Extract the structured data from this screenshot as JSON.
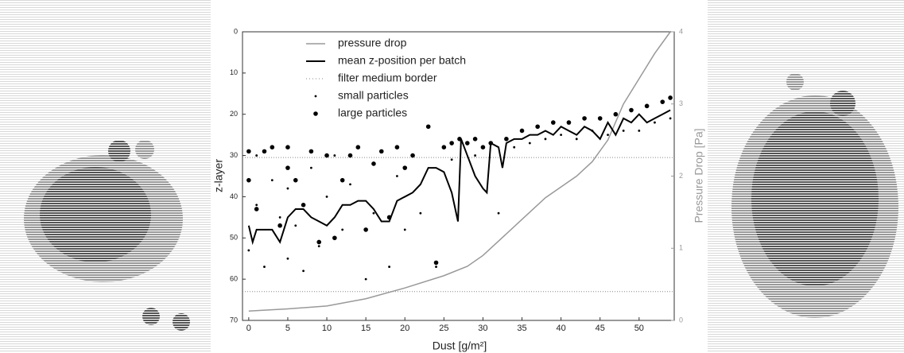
{
  "chart_data": {
    "type": "line",
    "x_label": "Dust [g/m²]",
    "y_label": "z-layer",
    "y2_label": "Pressure Drop [Pa]",
    "xlim": [
      -0.8,
      54.5
    ],
    "xticks": [
      0,
      5,
      10,
      15,
      20,
      25,
      30,
      35,
      40,
      45,
      50
    ],
    "ylim": [
      0,
      70
    ],
    "y_inverted": true,
    "yticks": [
      0,
      10,
      20,
      30,
      40,
      50,
      60,
      70
    ],
    "y2lim": [
      0,
      4
    ],
    "y2ticks": [
      0,
      1,
      2,
      3,
      4
    ],
    "y2_color": "#999999",
    "legend": "upper left",
    "series": [
      {
        "name": "pressure drop",
        "type": "line",
        "axis": "y2",
        "color": "#999999",
        "x": [
          0,
          5,
          10,
          15,
          20,
          25,
          28,
          30,
          32,
          35,
          38,
          40,
          42,
          44,
          46,
          48,
          50,
          52,
          54
        ],
        "values": [
          0.13,
          0.16,
          0.2,
          0.3,
          0.45,
          0.62,
          0.75,
          0.9,
          1.1,
          1.4,
          1.7,
          1.85,
          2.0,
          2.2,
          2.5,
          3.0,
          3.35,
          3.7,
          4.0
        ]
      },
      {
        "name": "mean z-position per batch",
        "type": "line",
        "color": "#000000",
        "x": [
          0,
          0.5,
          1,
          2,
          3,
          4,
          5,
          6,
          7,
          8,
          9,
          10,
          11,
          12,
          13,
          14,
          15,
          16,
          17,
          18,
          19,
          20,
          21,
          22,
          23,
          24,
          25,
          26,
          26.8,
          27.2,
          28,
          29,
          30,
          30.5,
          31,
          32,
          32.5,
          33,
          34,
          35,
          36,
          37,
          38,
          39,
          40,
          41,
          42,
          43,
          44,
          45,
          46,
          47,
          48,
          49,
          50,
          51,
          52,
          53,
          54
        ],
        "values": [
          47,
          51,
          48,
          48,
          48,
          51,
          45,
          43,
          43,
          45,
          46,
          47,
          45,
          42,
          42,
          41,
          41,
          43,
          46,
          46,
          41,
          40,
          39,
          37,
          33,
          33,
          34,
          39,
          46,
          26,
          30,
          35,
          38,
          39,
          27,
          28,
          33,
          27,
          26,
          26,
          25,
          25,
          24,
          25,
          23,
          24,
          25,
          23,
          24,
          26,
          22,
          25,
          21,
          22,
          20,
          22,
          21,
          20,
          19
        ]
      },
      {
        "name": "small particles",
        "type": "scatter",
        "color": "#000000",
        "x": [
          0,
          1,
          1,
          2,
          3,
          4,
          5,
          5,
          6,
          7,
          8,
          9,
          10,
          11,
          12,
          13,
          15,
          16,
          18,
          19,
          20,
          22,
          24,
          26,
          29,
          32,
          34,
          36,
          38,
          40,
          42,
          44,
          46,
          48,
          50,
          52,
          54
        ],
        "values": [
          53,
          42,
          30,
          57,
          36,
          45,
          55,
          38,
          47,
          58,
          33,
          52,
          40,
          30,
          48,
          37,
          60,
          44,
          57,
          35,
          48,
          44,
          57,
          31,
          30,
          44,
          28,
          27,
          26,
          25,
          26,
          24,
          25,
          24,
          24,
          22,
          21
        ]
      },
      {
        "name": "large particles",
        "type": "scatter",
        "color": "#000000",
        "x": [
          0,
          0,
          1,
          2,
          3,
          4,
          5,
          5,
          6,
          7,
          8,
          9,
          10,
          11,
          12,
          13,
          14,
          15,
          16,
          17,
          18,
          19,
          20,
          21,
          23,
          24,
          25,
          26,
          27,
          28,
          29,
          30,
          31,
          33,
          35,
          37,
          39,
          41,
          43,
          45,
          47,
          49,
          51,
          53,
          54
        ],
        "values": [
          29,
          36,
          43,
          29,
          28,
          47,
          28,
          33,
          36,
          42,
          29,
          51,
          30,
          50,
          36,
          30,
          28,
          48,
          32,
          29,
          45,
          28,
          33,
          30,
          23,
          56,
          28,
          27,
          26,
          27,
          26,
          28,
          27,
          26,
          24,
          23,
          22,
          22,
          21,
          21,
          20,
          19,
          18,
          17,
          16
        ]
      }
    ],
    "reference_lines": {
      "name": "filter medium border",
      "axis": "y",
      "values": [
        30.5,
        63
      ]
    }
  }
}
